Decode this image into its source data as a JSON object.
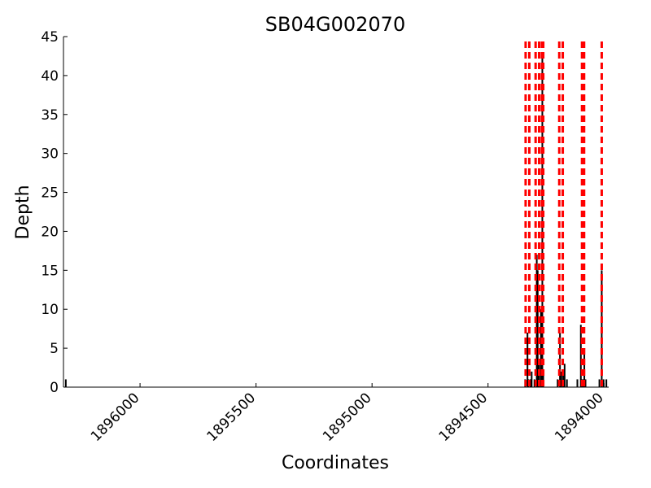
{
  "chart_data": {
    "type": "line",
    "title": "SB04G002070",
    "xlabel": "Coordinates",
    "ylabel": "Depth",
    "x_reversed": true,
    "xlim": [
      1896330,
      1893980
    ],
    "ylim": [
      0,
      45
    ],
    "xticks": [
      1896000,
      1895500,
      1895000,
      1894500,
      1894000
    ],
    "xtick_labels": [
      "1896000",
      "1895500",
      "1895000",
      "1894500",
      "1894000"
    ],
    "yticks": [
      0,
      5,
      10,
      15,
      20,
      25,
      30,
      35,
      40,
      45
    ],
    "ytick_labels": [
      "0",
      "5",
      "10",
      "15",
      "20",
      "25",
      "30",
      "35",
      "40",
      "45"
    ],
    "grid": false,
    "series": [
      {
        "values_kind": "depth",
        "color": "#000000",
        "points": [
          [
            1896320,
            1
          ],
          [
            1894340,
            1
          ],
          [
            1894330,
            7
          ],
          [
            1894327,
            1
          ],
          [
            1894318,
            1
          ],
          [
            1894312,
            2
          ],
          [
            1894300,
            1
          ],
          [
            1894290,
            17
          ],
          [
            1894286,
            15
          ],
          [
            1894280,
            3
          ],
          [
            1894272,
            10
          ],
          [
            1894266,
            43
          ],
          [
            1894262,
            2
          ],
          [
            1894200,
            1
          ],
          [
            1894190,
            7
          ],
          [
            1894184,
            2
          ],
          [
            1894176,
            2
          ],
          [
            1894170,
            3
          ],
          [
            1894160,
            1
          ],
          [
            1894115,
            1
          ],
          [
            1894100,
            8
          ],
          [
            1894094,
            1
          ],
          [
            1894088,
            1
          ],
          [
            1894085,
            5
          ],
          [
            1894080,
            1
          ],
          [
            1894020,
            1
          ],
          [
            1894010,
            15
          ],
          [
            1894002,
            1
          ],
          [
            1893990,
            1
          ]
        ]
      }
    ],
    "vlines": {
      "color": "#ff0000",
      "style": "dashed",
      "x": [
        1894338,
        1894322,
        1894295,
        1894280,
        1894268,
        1894262,
        1894193,
        1894178,
        1894095,
        1894086,
        1894010
      ]
    }
  }
}
